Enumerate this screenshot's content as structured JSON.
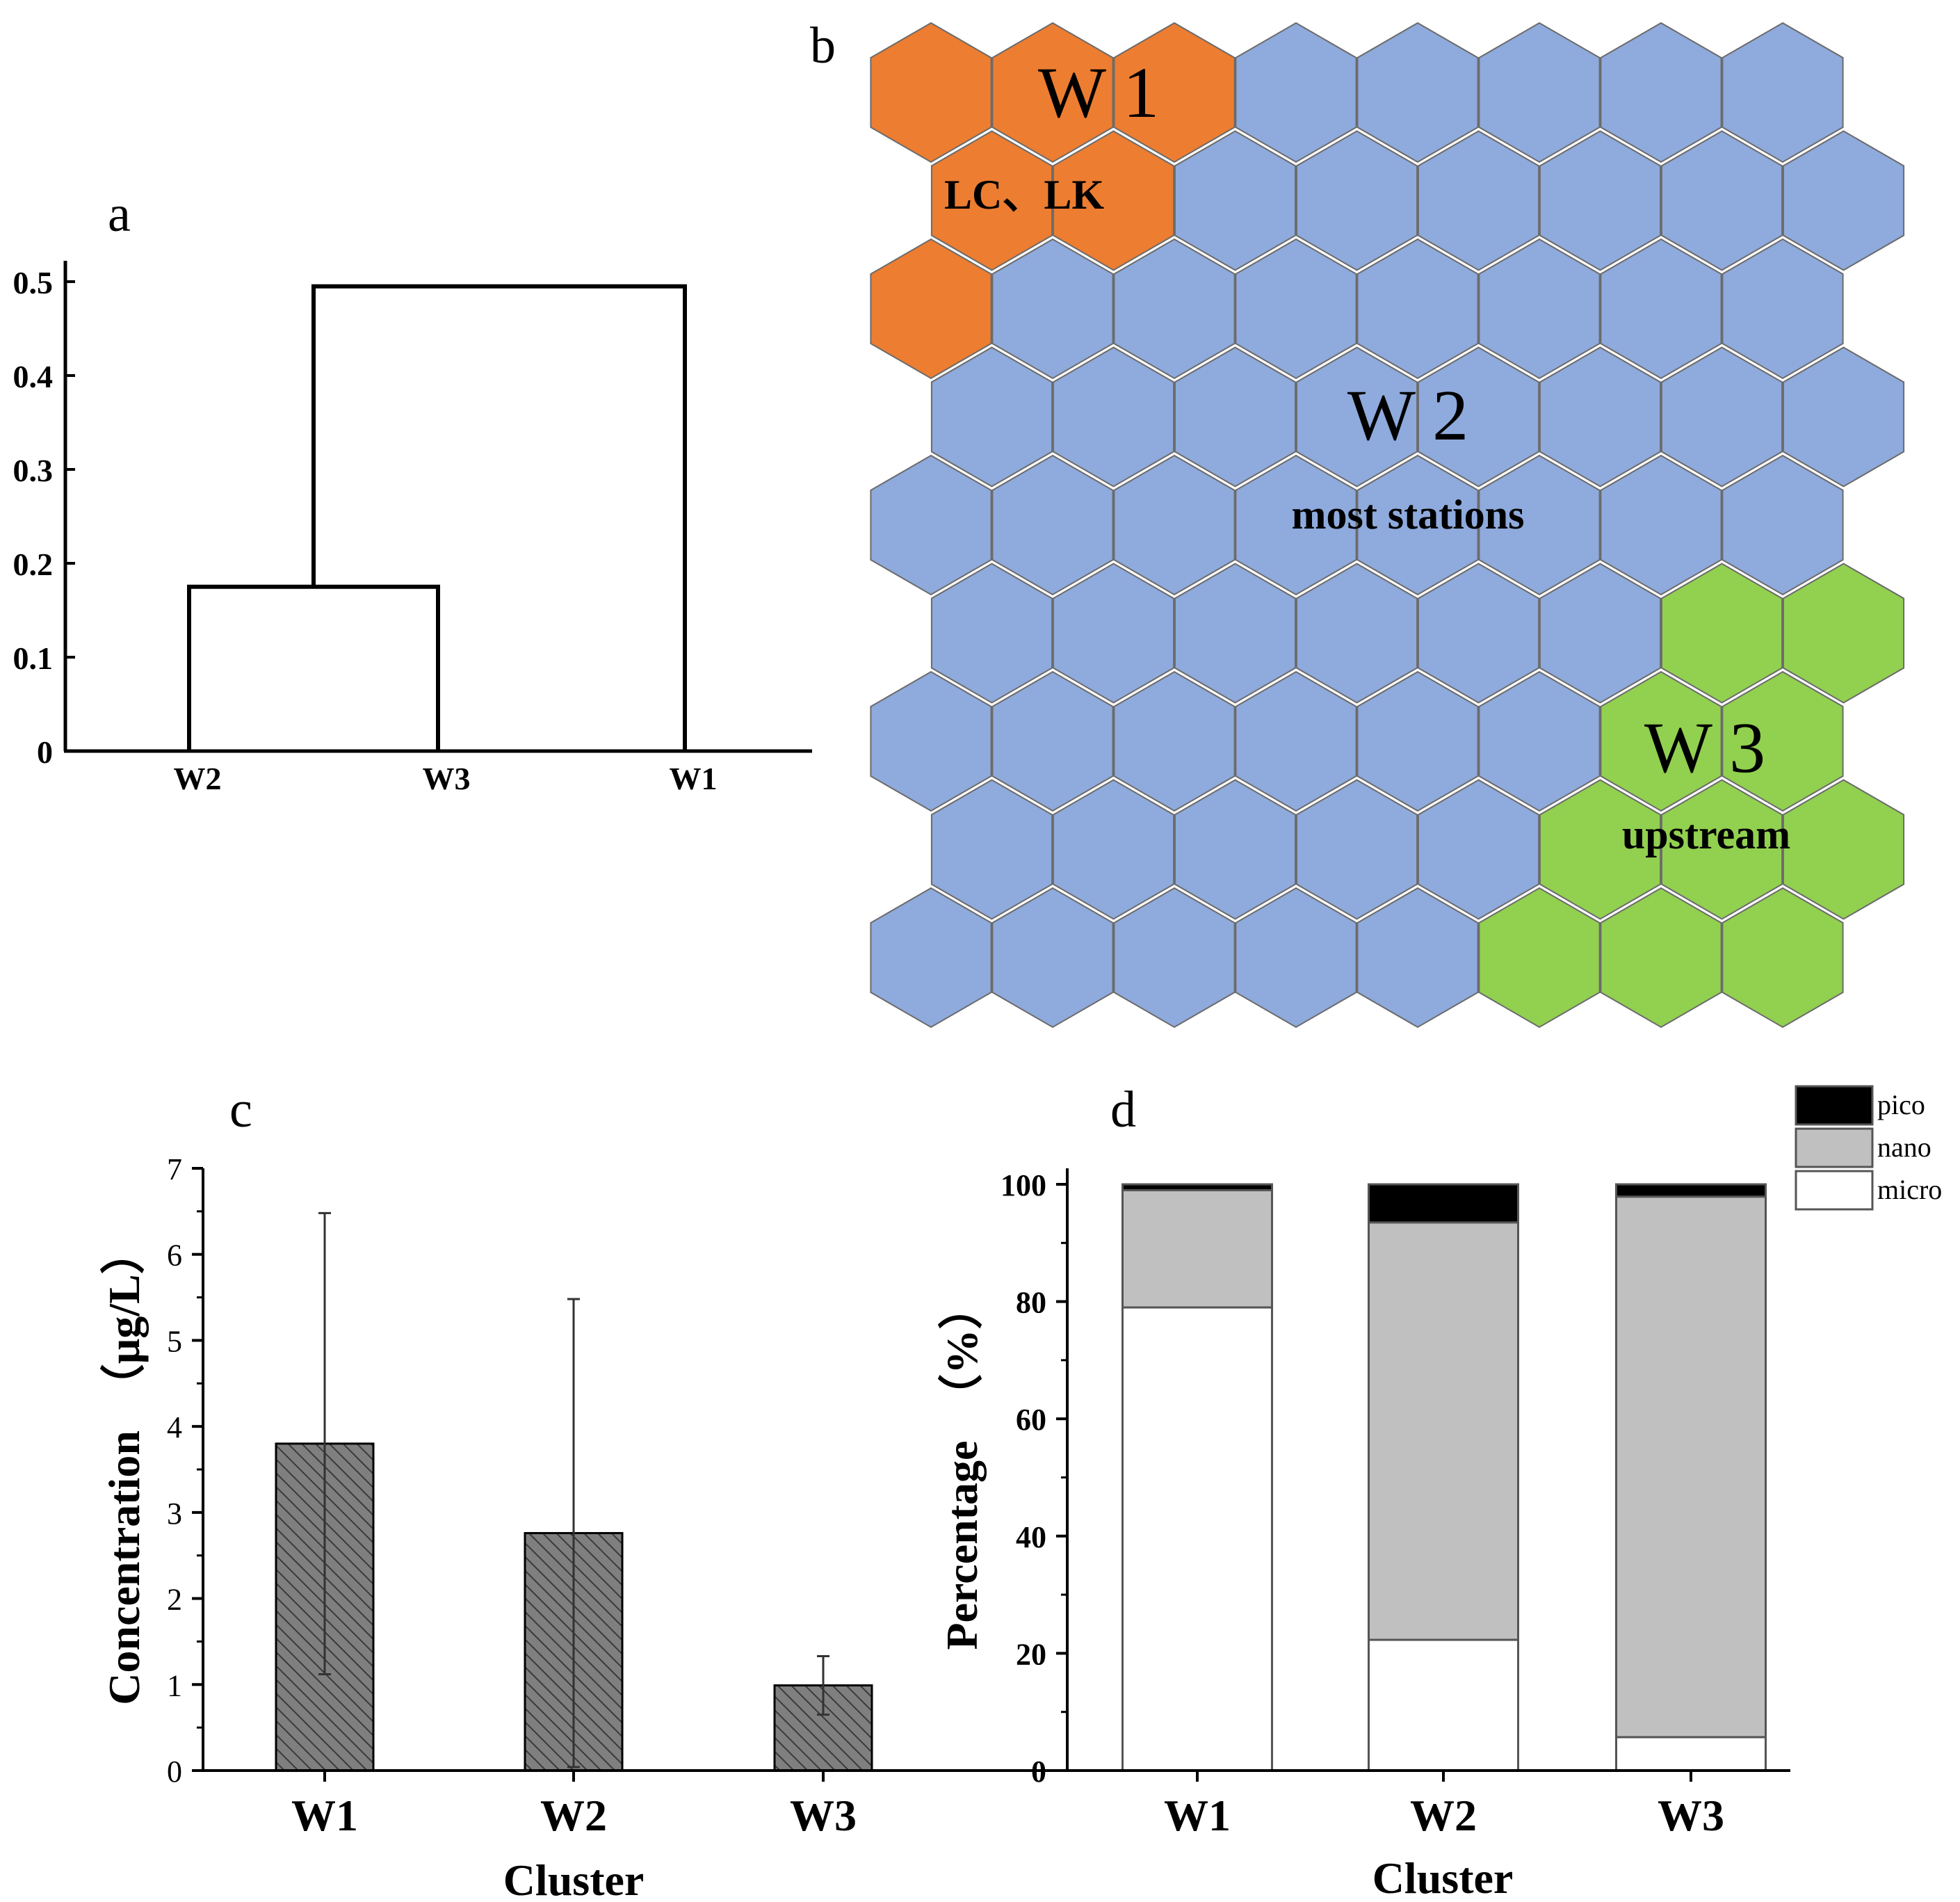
{
  "panels": {
    "a": "a",
    "b": "b",
    "c": "c",
    "d": "d"
  },
  "colors": {
    "w1": "#ED7D31",
    "w2": "#8FAADC",
    "w3": "#92D050",
    "hex_stroke": "#6b6b6b",
    "bar_fill": "#7f7f7f",
    "pico": "#000000",
    "nano": "#c0c0c0",
    "micro": "#ffffff"
  },
  "chart_data": [
    {
      "id": "a",
      "type": "dendrogram",
      "leaves": [
        "W2",
        "W3",
        "W1"
      ],
      "merges": [
        {
          "left": "W2",
          "right": "W3",
          "height": 0.175
        },
        {
          "left": "W2+W3",
          "right": "W1",
          "height": 0.495
        }
      ],
      "yticks": [
        "0",
        "0.1",
        "0.2",
        "0.3",
        "0.4",
        "0.5"
      ],
      "ylim": [
        0,
        0.5
      ]
    },
    {
      "id": "b",
      "type": "hexagonal-som-map",
      "rows": 9,
      "cols": 8,
      "labels": {
        "w1": "W 1",
        "w1_sub": "LC、LK",
        "w2": "W 2",
        "w2_sub": "most stations",
        "w3": "W 3",
        "w3_sub": "upstream"
      }
    },
    {
      "id": "c",
      "type": "bar",
      "categories": [
        "W1",
        "W2",
        "W3"
      ],
      "values": [
        3.8,
        2.76,
        0.99
      ],
      "errors": [
        2.68,
        2.72,
        0.34
      ],
      "xlabel": "Cluster",
      "ylabel": "Concentration　（μg/L）",
      "yticks": [
        "0",
        "1",
        "2",
        "3",
        "4",
        "5",
        "6",
        "7"
      ],
      "ylim": [
        0,
        7
      ]
    },
    {
      "id": "d",
      "type": "stacked-bar",
      "categories": [
        "W1",
        "W2",
        "W3"
      ],
      "series": [
        {
          "name": "micro",
          "values": [
            79,
            22.3,
            5.7
          ]
        },
        {
          "name": "nano",
          "values": [
            20,
            71.2,
            92.2
          ]
        },
        {
          "name": "pico",
          "values": [
            1,
            6.5,
            2.1
          ]
        }
      ],
      "legend": [
        "pico",
        "nano",
        "micro"
      ],
      "xlabel": "Cluster",
      "ylabel": "Percentage　（%）",
      "yticks": [
        "0",
        "20",
        "40",
        "60",
        "80",
        "100"
      ],
      "ylim": [
        0,
        100
      ],
      "legend_position": "top-right"
    }
  ]
}
